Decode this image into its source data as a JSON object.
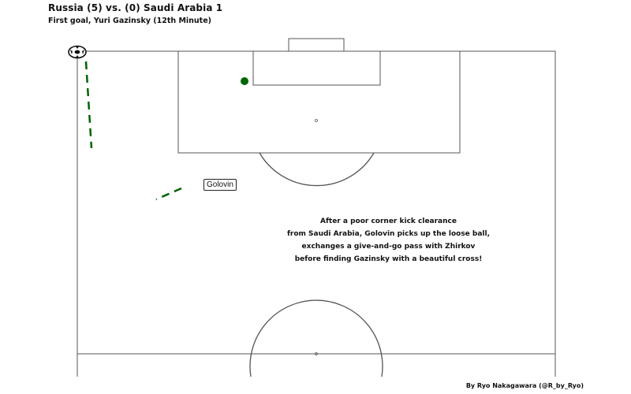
{
  "header": {
    "title": "Russia (5) vs. (0) Saudi Arabia 1",
    "subtitle": "First goal, Yuri Gazinsky (12th Minute)"
  },
  "annotation": {
    "lines": [
      "After a poor corner kick clearance",
      "from Saudi Arabia, Golovin picks up the loose ball,",
      "exchanges a give-and-go pass with Zhirkov",
      "before finding Gazinsky with a beautiful cross!"
    ]
  },
  "player_label": {
    "name": "Golovin"
  },
  "credit": {
    "text": "By Ryo Nakagawara (@R_by_Ryo)"
  },
  "colors": {
    "pass": "#006400",
    "pitch_lines": "#555555",
    "shot": "#006400"
  },
  "icons": {
    "ball": "soccer-ball-icon"
  }
}
